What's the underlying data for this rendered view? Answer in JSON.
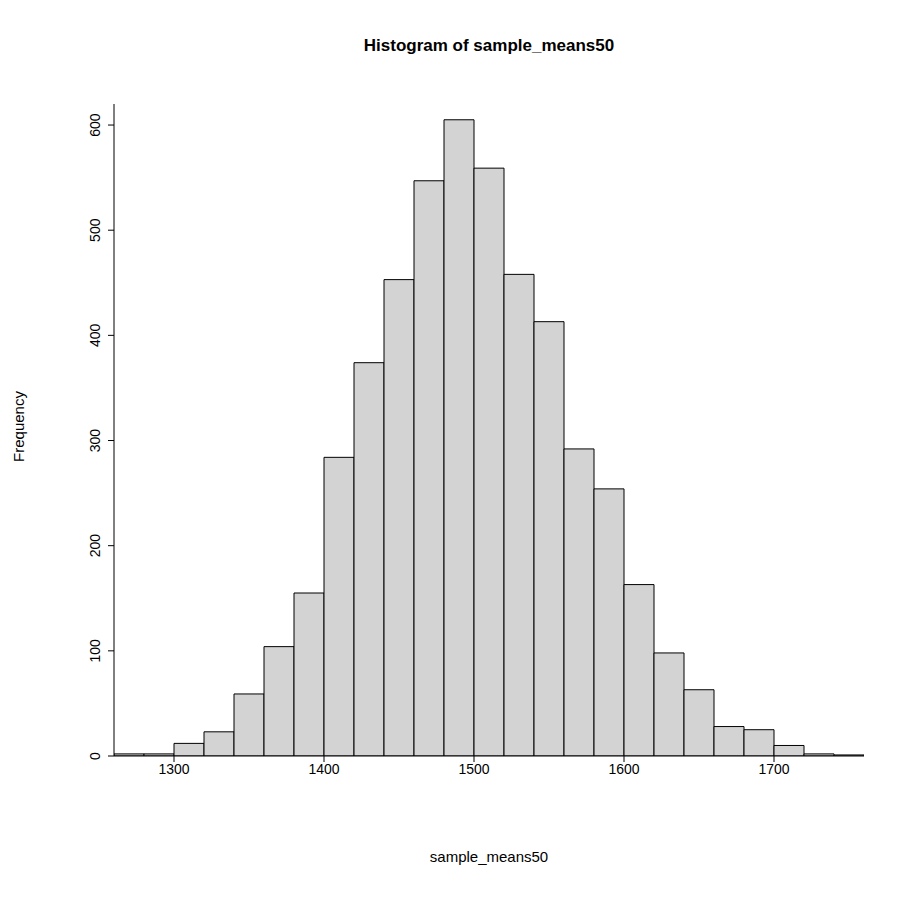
{
  "chart_data": {
    "type": "histogram",
    "title": "Histogram of sample_means50",
    "x_label": "sample_means50",
    "y_label": "Frequency",
    "bins": [
      1260,
      1280,
      1300,
      1320,
      1340,
      1360,
      1380,
      1400,
      1420,
      1440,
      1460,
      1480,
      1500,
      1520,
      1540,
      1560,
      1580,
      1600,
      1620,
      1640,
      1660,
      1680,
      1700,
      1720,
      1740,
      1760
    ],
    "counts": [
      2,
      2,
      12,
      23,
      59,
      104,
      155,
      284,
      374,
      453,
      547,
      605,
      559,
      458,
      413,
      292,
      254,
      163,
      98,
      63,
      28,
      25,
      10,
      2,
      1
    ],
    "color": "#d3d3d3",
    "xlim": [
      1260,
      1760
    ],
    "xticks": [
      1300,
      1400,
      1500,
      1600,
      1700
    ],
    "ylim": [
      0,
      620
    ],
    "yticks": [
      0,
      100,
      200,
      300,
      400,
      500,
      600
    ],
    "grid": false
  }
}
